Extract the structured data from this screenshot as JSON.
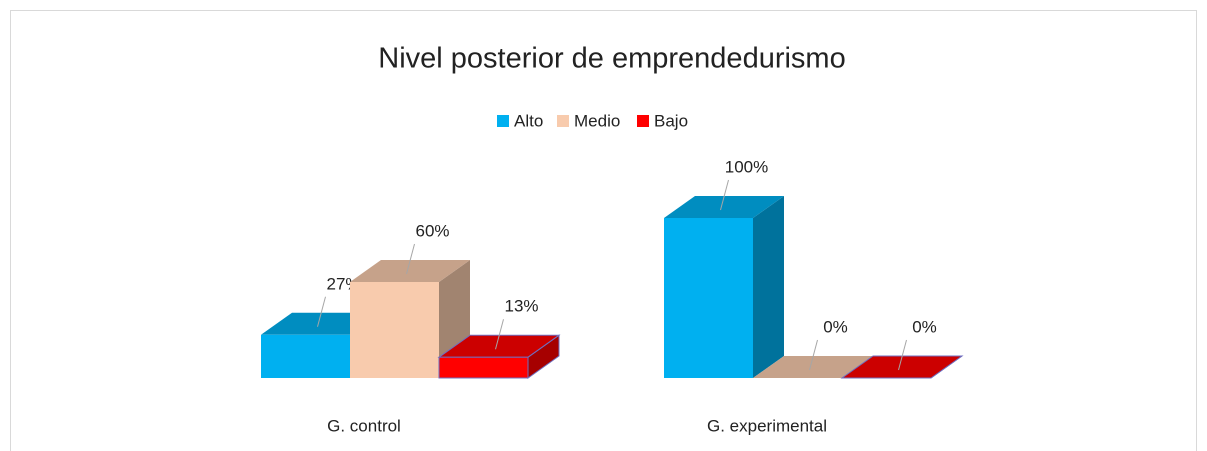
{
  "chart_data": {
    "type": "bar3d",
    "title": "Nivel posterior de emprendedurismo",
    "categories": [
      "G. control",
      "G. experimental"
    ],
    "series": [
      {
        "name": "Alto",
        "color": "#00b0f0",
        "values": [
          27,
          100
        ],
        "value_labels": [
          "27%",
          "100%"
        ]
      },
      {
        "name": "Medio",
        "color": "#f8cbad",
        "values": [
          60,
          0
        ],
        "value_labels": [
          "60%",
          "0%"
        ]
      },
      {
        "name": "Bajo",
        "color": "#ff0000",
        "values": [
          13,
          0
        ],
        "value_labels": [
          "13%",
          "0%"
        ]
      }
    ],
    "legend": "top"
  }
}
